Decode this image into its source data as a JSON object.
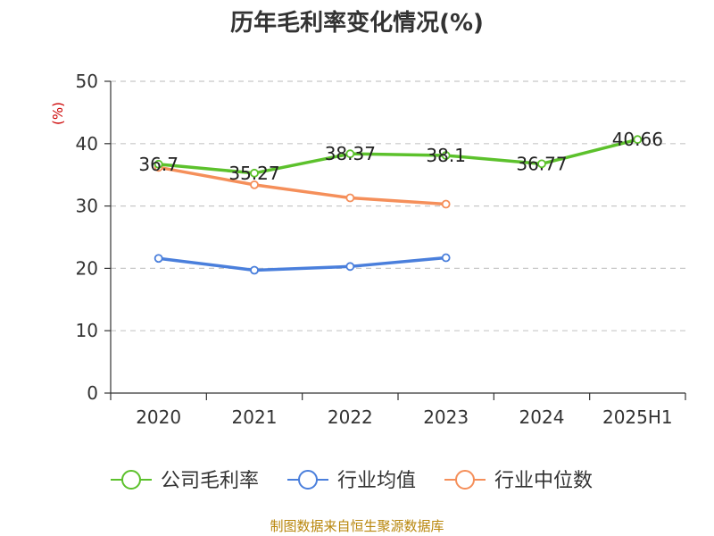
{
  "chart_data": {
    "type": "line",
    "title": "历年毛利率变化情况(%)",
    "ylabel": "(%)",
    "categories": [
      "2020",
      "2021",
      "2022",
      "2023",
      "2024",
      "2025H1"
    ],
    "ylim": [
      0,
      50
    ],
    "yticks": [
      0,
      10,
      20,
      30,
      40,
      50
    ],
    "grid": "horizontal dashed",
    "legend_position": "bottom",
    "series": [
      {
        "name": "公司毛利率",
        "color": "#5cc12c",
        "values": [
          36.7,
          35.27,
          38.37,
          38.1,
          36.77,
          40.66
        ],
        "labels": [
          "36.7",
          "35.27",
          "38.37",
          "38.1",
          "36.77",
          "40.66"
        ],
        "show_labels": true
      },
      {
        "name": "行业均值",
        "color": "#4a7fdc",
        "values": [
          21.6,
          19.7,
          20.3,
          21.7,
          null,
          null
        ],
        "show_labels": false
      },
      {
        "name": "行业中位数",
        "color": "#f58f5a",
        "values": [
          36.2,
          33.4,
          31.3,
          30.3,
          null,
          null
        ],
        "show_labels": false
      }
    ]
  },
  "footer": {
    "source": "制图数据来自恒生聚源数据库"
  }
}
